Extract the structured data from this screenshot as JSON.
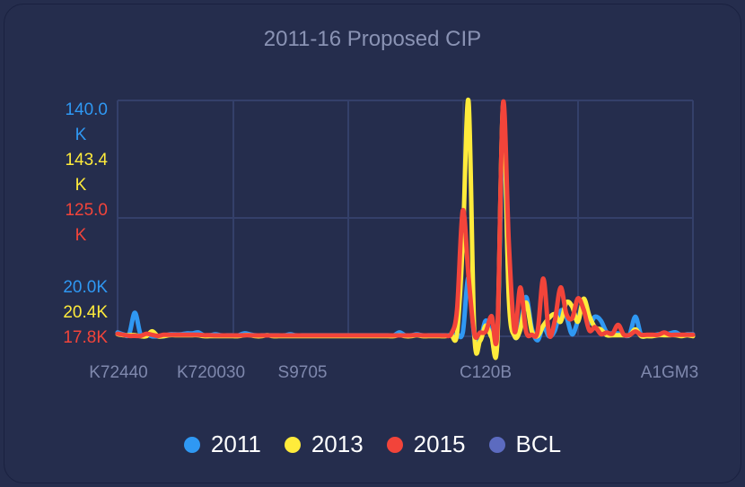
{
  "title": "2011-16 Proposed CIP",
  "colors": {
    "background": "#252d4d",
    "grid": "#34406a",
    "tick": "#7f88ad",
    "s2011": "#2f98f3",
    "s2013": "#ffeb3b",
    "s2015": "#f2443a",
    "bcl": "#5c6bc0"
  },
  "axes": {
    "y_2011": [
      "140.0",
      "K",
      "20.0K"
    ],
    "y_2013": [
      "143.4",
      "K",
      "20.4K"
    ],
    "y_2015": [
      "125.0",
      "K",
      "17.8K"
    ],
    "x_ticks": [
      "K72440",
      "K720030",
      "S9705",
      "C120B",
      "A1GM3"
    ]
  },
  "legend": [
    {
      "label": "2011",
      "color": "#2f98f3"
    },
    {
      "label": "2013",
      "color": "#ffeb3b"
    },
    {
      "label": "2015",
      "color": "#f2443a"
    },
    {
      "label": "BCL",
      "color": "#5c6bc0"
    }
  ],
  "chart_data": {
    "type": "line",
    "title": "2011-16 Proposed CIP",
    "x_tick_labels": [
      "K72440",
      "K720030",
      "S9705",
      "C120B",
      "A1GM3"
    ],
    "grid": true,
    "legend_position": "bottom",
    "series": [
      {
        "name": "2011",
        "axis": {
          "min": 20000,
          "max": 140000
        },
        "values": [
          22000,
          21000,
          21000,
          32000,
          21000,
          21000,
          20000,
          20000,
          20000,
          21000,
          21000,
          21000,
          21500,
          21500,
          22000,
          20500,
          20500,
          21000,
          20500,
          20500,
          20500,
          20500,
          21500,
          21000,
          20500,
          20500,
          20500,
          20500,
          20500,
          20500,
          21000,
          20500,
          20500,
          20500,
          20500,
          20500,
          20500,
          20500,
          20500,
          20500,
          20500,
          20500,
          20500,
          20500,
          20500,
          20500,
          20500,
          20500,
          20500,
          22000,
          20500,
          20500,
          21000,
          20500,
          20500,
          20500,
          20500,
          20500,
          20500,
          21000,
          22000,
          50000,
          20000,
          18000,
          28000,
          20000,
          18000,
          128000,
          42000,
          20000,
          25000,
          40000,
          24000,
          18000,
          25000,
          20000,
          23000,
          33000,
          30000,
          21000,
          28000,
          37000,
          27000,
          30000,
          28000,
          22000,
          21500,
          21500,
          20500,
          21000,
          30000,
          20500,
          20500,
          20500,
          21000,
          21000,
          21500,
          22000,
          20500,
          21000,
          21000
        ]
      },
      {
        "name": "2013",
        "axis": {
          "min": 20400,
          "max": 143400
        },
        "values": [
          21500,
          21000,
          21000,
          21000,
          20500,
          20500,
          23000,
          20500,
          20500,
          21000,
          21000,
          21000,
          21000,
          21000,
          21000,
          20500,
          20500,
          20500,
          20500,
          20500,
          20500,
          20500,
          21000,
          21000,
          20500,
          20500,
          21000,
          20500,
          20500,
          20500,
          20500,
          20500,
          20500,
          20500,
          20500,
          20500,
          20500,
          20500,
          20500,
          20500,
          20500,
          20500,
          20500,
          20500,
          20500,
          20500,
          20500,
          20500,
          20500,
          21000,
          20500,
          20500,
          21000,
          20500,
          20500,
          20500,
          20500,
          20500,
          21000,
          22000,
          70000,
          143000,
          22000,
          18000,
          26000,
          20000,
          18000,
          141000,
          40000,
          20500,
          24000,
          38000,
          23000,
          20500,
          26000,
          30000,
          32000,
          28000,
          38000,
          36000,
          28000,
          40000,
          31000,
          25000,
          24000,
          21000,
          21000,
          21000,
          21000,
          21000,
          24000,
          20500,
          20500,
          20500,
          21000,
          21000,
          21000,
          21000,
          20500,
          21000,
          20500
        ]
      },
      {
        "name": "2015",
        "axis": {
          "min": 17800,
          "max": 125000
        },
        "values": [
          19000,
          18500,
          18000,
          18000,
          18000,
          19000,
          18500,
          18000,
          18500,
          18500,
          18500,
          18500,
          18500,
          18500,
          18500,
          18300,
          18300,
          18200,
          18200,
          18200,
          18200,
          18200,
          18300,
          18300,
          18200,
          18200,
          18200,
          18200,
          18200,
          18200,
          18200,
          18200,
          18200,
          18200,
          18200,
          18200,
          18200,
          18200,
          18200,
          18200,
          18200,
          18200,
          18200,
          18200,
          18200,
          18200,
          18200,
          18200,
          18200,
          18200,
          18200,
          18200,
          18400,
          18200,
          18200,
          18200,
          18200,
          18200,
          19000,
          30000,
          75000,
          45000,
          19000,
          19500,
          20000,
          27000,
          20000,
          124000,
          60000,
          20000,
          40000,
          20000,
          18500,
          20000,
          44000,
          18500,
          25000,
          40000,
          28000,
          26000,
          35000,
          30000,
          20500,
          22000,
          18800,
          19500,
          19000,
          23000,
          18500,
          18500,
          20000,
          18500,
          18500,
          18500,
          18500,
          19500,
          18500,
          18500,
          18500,
          18500,
          18500
        ]
      },
      {
        "name": "BCL",
        "values": []
      }
    ]
  }
}
